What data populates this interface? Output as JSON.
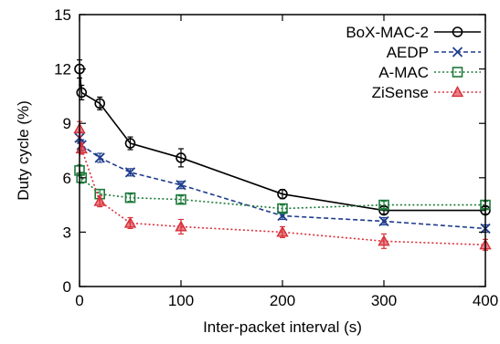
{
  "chart_data": {
    "type": "line",
    "xlabel": "Inter-packet interval (s)",
    "ylabel": "Duty cycle (%)",
    "xlim": [
      0,
      400
    ],
    "ylim": [
      0,
      15
    ],
    "xticks": [
      0,
      100,
      200,
      300,
      400
    ],
    "yticks": [
      0,
      3,
      6,
      9,
      12,
      15
    ],
    "grid": false,
    "legend_position": "top-right",
    "series": [
      {
        "name": "BoX-MAC-2",
        "color": "#000000",
        "marker": "circle",
        "line": "solid",
        "x": [
          0,
          2,
          20,
          50,
          100,
          200,
          300,
          400
        ],
        "y": [
          12.0,
          10.7,
          10.1,
          7.9,
          7.1,
          5.1,
          4.2,
          4.2
        ],
        "err": [
          0.5,
          0.4,
          0.35,
          0.35,
          0.5,
          0.25,
          0.2,
          0.2
        ]
      },
      {
        "name": "AEDP",
        "color": "#1f3d8c",
        "marker": "x",
        "line": "dashed",
        "x": [
          0,
          2,
          20,
          50,
          100,
          200,
          300,
          400
        ],
        "y": [
          8.2,
          7.8,
          7.1,
          6.3,
          5.6,
          3.9,
          3.6,
          3.2
        ],
        "err": [
          0.3,
          0.3,
          0.25,
          0.2,
          0.2,
          0.2,
          0.2,
          0.2
        ]
      },
      {
        "name": "A-MAC",
        "color": "#1e7a3a",
        "marker": "square",
        "line": "dotted",
        "x": [
          0,
          2,
          20,
          50,
          100,
          200,
          300,
          400
        ],
        "y": [
          6.4,
          6.0,
          5.1,
          4.9,
          4.8,
          4.3,
          4.5,
          4.5
        ],
        "err": [
          0.3,
          0.3,
          0.25,
          0.2,
          0.2,
          0.2,
          0.2,
          0.2
        ]
      },
      {
        "name": "ZiSense",
        "color": "#d8303a",
        "marker": "triangle",
        "line": "dotted",
        "x": [
          0,
          2,
          20,
          50,
          100,
          200,
          300,
          400
        ],
        "y": [
          8.7,
          7.6,
          4.7,
          3.5,
          3.3,
          3.0,
          2.5,
          2.3
        ],
        "err": [
          0.4,
          0.3,
          0.3,
          0.3,
          0.4,
          0.3,
          0.4,
          0.3
        ]
      }
    ]
  }
}
